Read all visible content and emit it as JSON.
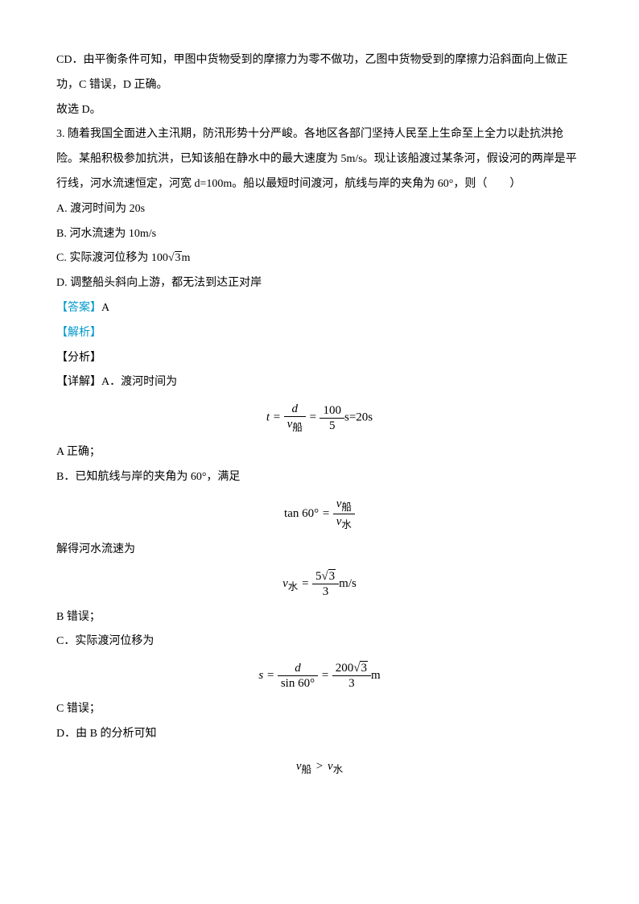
{
  "colors": {
    "text": "#000000",
    "accent": "#0099cc",
    "background": "#ffffff"
  },
  "typography": {
    "body_fontsize": 14,
    "formula_fontsize": 15,
    "line_height": 2.2
  },
  "p1": "CD．由平衡条件可知，甲图中货物受到的摩擦力为零不做功，乙图中货物受到的摩擦力沿斜面向上做正功，C 错误，D 正确。",
  "p2": "故选 D。",
  "q3": "3. 随着我国全面进入主汛期，防汛形势十分严峻。各地区各部门坚持人民至上生命至上全力以赴抗洪抢险。某船积极参加抗洪，已知该船在静水中的最大速度为 5m/s。现让该船渡过某条河，假设河的两岸是平行线，河水流速恒定，河宽 d=100m。船以最短时间渡河，航线与岸的夹角为 60°，则（　　）",
  "optA": "A. 渡河时间为 20s",
  "optB": "B. 河水流速为 10m/s",
  "optC_pre": "C. 实际渡河位移为 ",
  "optC_val": "100",
  "optC_sqrt": "3",
  "optC_unit": "m",
  "optD": "D. 调整船头斜向上游，都无法到达正对岸",
  "ans_label": "【答案】",
  "ans_val": "A",
  "ana_label": "【解析】",
  "fenxi": "【分析】",
  "detailA": "【详解】A．渡河时间为",
  "formula1": {
    "lhs": "t",
    "num1": "d",
    "den1_sub": "船",
    "num2": "100",
    "den2": "5",
    "rhs": "s=20s"
  },
  "aCorrect": "A 正确；",
  "bIntro": "B．已知航线与岸的夹角为 60°，满足",
  "formula2": {
    "lhs": "tan 60°",
    "num_sub": "船",
    "den_sub": "水"
  },
  "bResult": "解得河水流速为",
  "formula3": {
    "lhs_sub": "水",
    "num_coef": "5",
    "num_sqrt": "3",
    "den": "3",
    "unit": "m/s"
  },
  "bWrong": "B 错误；",
  "cIntro": "C．实际渡河位移为",
  "formula4": {
    "lhs": "s",
    "num1": "d",
    "den1": "sin 60°",
    "num2_coef": "200",
    "num2_sqrt": "3",
    "den2": "3",
    "unit": "m"
  },
  "cWrong": "C 错误；",
  "dIntro": "D．由 B 的分析可知",
  "formula5": {
    "l_sub": "船",
    "op": ">",
    "r_sub": "水"
  }
}
